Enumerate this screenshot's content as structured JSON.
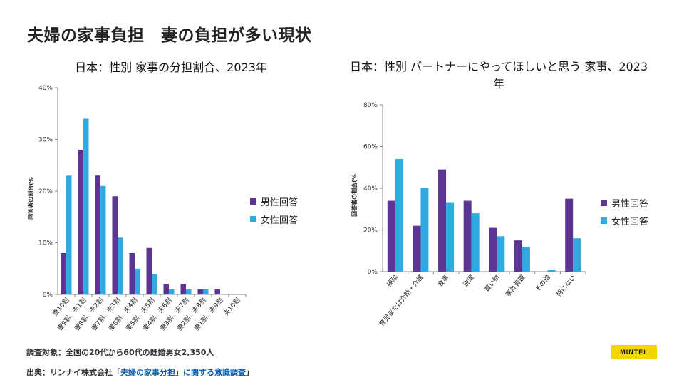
{
  "page": {
    "title": "夫婦の家事負担　妻の負担が多い現状"
  },
  "colors": {
    "male": "#5b3494",
    "female": "#33a9e0",
    "axis": "#888888",
    "brand": "#f2d600"
  },
  "legend": {
    "male": "男性回答",
    "female": "女性回答"
  },
  "chart_data": [
    {
      "type": "bar",
      "title": "日本：性別  家事の分担割合、2023年",
      "ylabel": "回答者の割合(%",
      "xlabel": "",
      "ylim": [
        0,
        40
      ],
      "yticks": [
        "0%",
        "10%",
        "20%",
        "30%",
        "40%"
      ],
      "categories": [
        "妻10割",
        "妻9割、夫1割",
        "妻8割、夫2割",
        "妻7割、夫3割",
        "妻6割、夫4割",
        "妻5割、夫5割",
        "妻4割、夫6割",
        "妻3割、夫7割",
        "妻2割、夫8割",
        "妻1割、夫9割",
        "夫10割"
      ],
      "series": [
        {
          "name": "男性回答",
          "values": [
            8,
            28,
            23,
            19,
            8,
            9,
            2,
            2,
            1,
            1,
            0
          ]
        },
        {
          "name": "女性回答",
          "values": [
            23,
            34,
            21,
            11,
            5,
            4,
            1,
            1,
            1,
            0,
            0
          ]
        }
      ]
    },
    {
      "type": "bar",
      "title": "日本：性別  パートナーにやってほしいと思う 家事、2023年",
      "ylabel": "回答者の割合(%",
      "xlabel": "",
      "ylim": [
        0,
        80
      ],
      "yticks": [
        "0%",
        "20%",
        "40%",
        "60%",
        "80%"
      ],
      "categories": [
        "掃除",
        "育児または介助・介護",
        "食事",
        "洗濯",
        "買い物",
        "家計管理",
        "その他",
        "特にない"
      ],
      "series": [
        {
          "name": "男性回答",
          "values": [
            34,
            22,
            49,
            34,
            21,
            15,
            0,
            35
          ]
        },
        {
          "name": "女性回答",
          "values": [
            54,
            40,
            33,
            28,
            17,
            12,
            1,
            16
          ]
        }
      ]
    }
  ],
  "footer": {
    "survey": "調査対象：全国の20代から60代の既婚男女2,350人",
    "source_prefix": "出典：リンナイ株式会社「",
    "source_link": "夫婦の家事分担」に関する意識調査",
    "source_suffix": "」"
  },
  "brand": {
    "name": "MINTEL"
  }
}
